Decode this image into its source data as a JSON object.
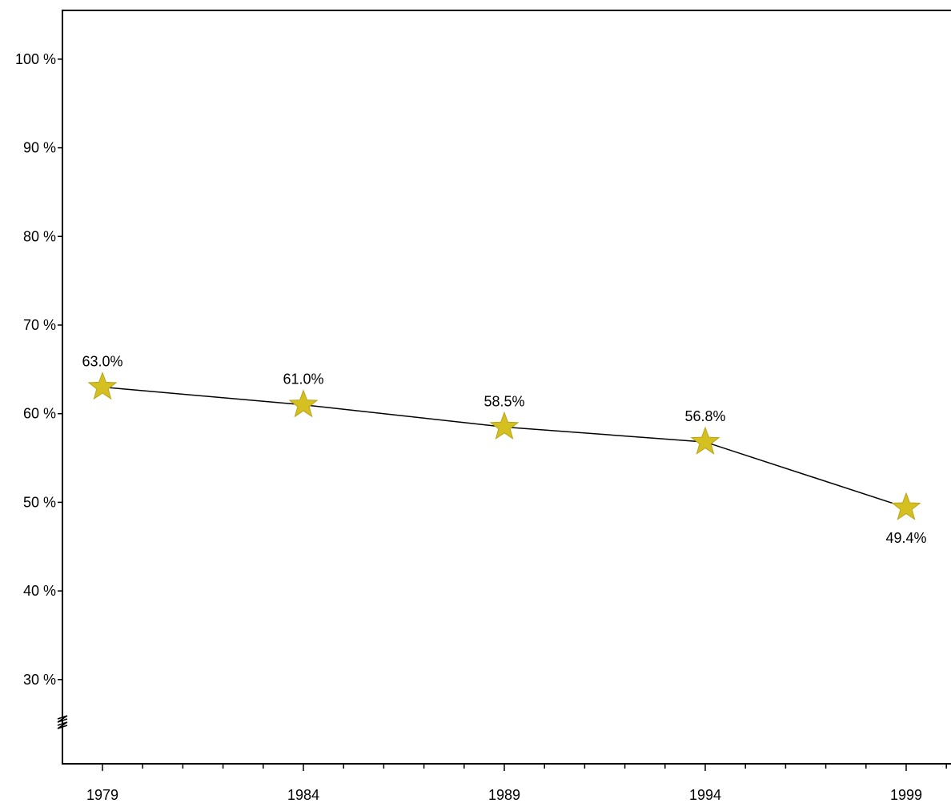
{
  "chart_data": {
    "type": "line",
    "x": [
      1979,
      1984,
      1989,
      1994,
      1999
    ],
    "x_tick_labels": [
      "1979",
      "1984",
      "1989",
      "1994",
      "1999"
    ],
    "series": [
      {
        "values": [
          63.0,
          61.0,
          58.5,
          56.8,
          49.4
        ],
        "data_labels": [
          "63.0%",
          "61.0%",
          "58.5%",
          "56.8%",
          "49.4%"
        ],
        "line_color": "#000000",
        "marker": "star",
        "marker_color": "#d4c020"
      }
    ],
    "y_ticks": [
      30,
      40,
      50,
      60,
      70,
      80,
      90,
      100
    ],
    "y_tick_labels": [
      "30 %",
      "40 %",
      "50 %",
      "60 %",
      "70 %",
      "80 %",
      "90 %",
      "100 %"
    ],
    "ylim": [
      20.5,
      105.5
    ],
    "y_axis_break": true,
    "x_minor_ticks_per_interval": 4,
    "grid": false,
    "title": "",
    "xlabel": "",
    "ylabel": ""
  }
}
